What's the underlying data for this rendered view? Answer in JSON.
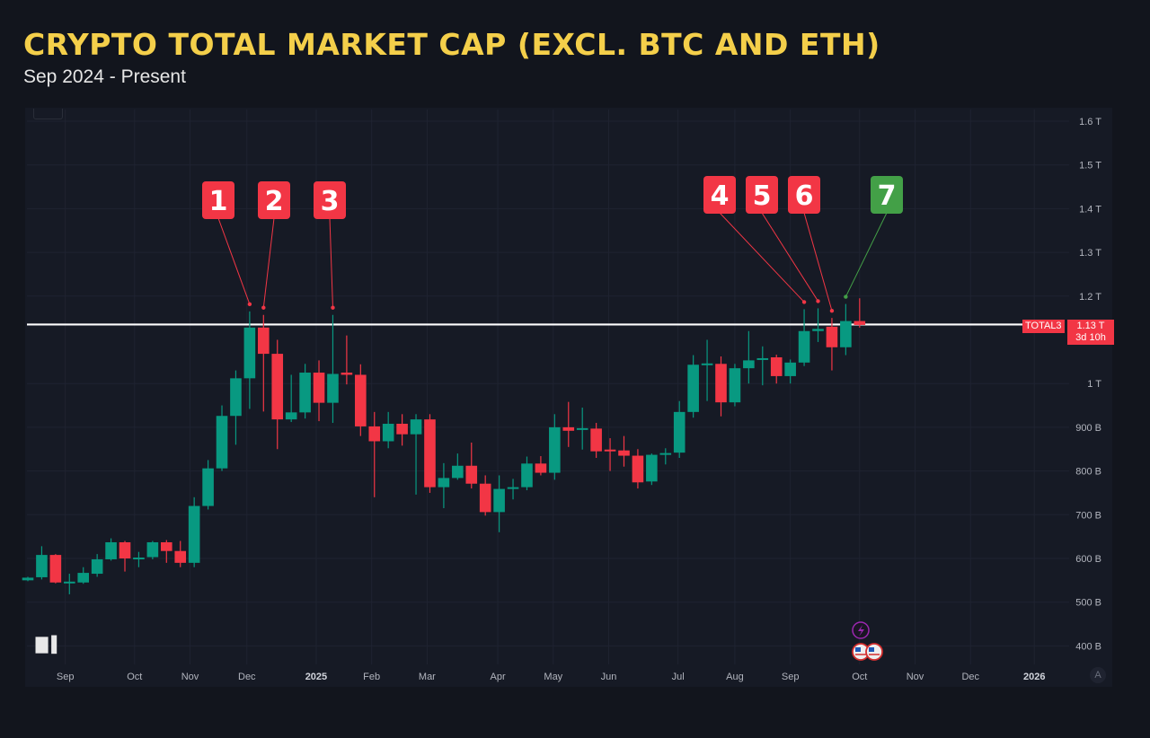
{
  "header": {
    "title": "CRYPTO TOTAL MARKET CAP (EXCL. BTC AND ETH)",
    "subtitle": "Sep 2024 - Present"
  },
  "colors": {
    "up": "#089981",
    "down": "#f23645",
    "title": "#f4cf4a",
    "marker_green": "#43a047",
    "level_line": "#ffffff"
  },
  "price_tag": {
    "symbol": "TOTAL3",
    "price": "1.13 T",
    "countdown": "3d 10h"
  },
  "auto_button": "A",
  "logo": "TV",
  "event_icons": [
    "lightning-icon",
    "us-flag-icon",
    "us-flag-icon"
  ],
  "chart_data": {
    "type": "candlestick",
    "title": "CRYPTO TOTAL MARKET CAP (EXCL. BTC AND ETH)",
    "interval": "weekly",
    "ylim": [
      400,
      1600
    ],
    "yunit": "B USD",
    "y_ticks": [
      {
        "v": 1600,
        "label": "1.6 T"
      },
      {
        "v": 1500,
        "label": "1.5 T"
      },
      {
        "v": 1400,
        "label": "1.4 T"
      },
      {
        "v": 1300,
        "label": "1.3 T"
      },
      {
        "v": 1200,
        "label": "1.2 T"
      },
      {
        "v": 1000,
        "label": "1 T"
      },
      {
        "v": 900,
        "label": "900 B"
      },
      {
        "v": 800,
        "label": "800 B"
      },
      {
        "v": 700,
        "label": "700 B"
      },
      {
        "v": 600,
        "label": "600 B"
      },
      {
        "v": 500,
        "label": "500 B"
      },
      {
        "v": 400,
        "label": "400 B"
      }
    ],
    "x_ticks": [
      {
        "week": 2.7,
        "label": "Sep",
        "bold": false
      },
      {
        "week": 7.7,
        "label": "Oct",
        "bold": false
      },
      {
        "week": 11.7,
        "label": "Nov",
        "bold": false
      },
      {
        "week": 15.8,
        "label": "Dec",
        "bold": false
      },
      {
        "week": 20.8,
        "label": "2025",
        "bold": true
      },
      {
        "week": 24.8,
        "label": "Feb",
        "bold": false
      },
      {
        "week": 28.8,
        "label": "Mar",
        "bold": false
      },
      {
        "week": 33.9,
        "label": "Apr",
        "bold": false
      },
      {
        "week": 37.9,
        "label": "May",
        "bold": false
      },
      {
        "week": 41.9,
        "label": "Jun",
        "bold": false
      },
      {
        "week": 46.9,
        "label": "Jul",
        "bold": false
      },
      {
        "week": 51,
        "label": "Aug",
        "bold": false
      },
      {
        "week": 55,
        "label": "Sep",
        "bold": false
      },
      {
        "week": 60,
        "label": "Oct",
        "bold": false
      },
      {
        "week": 64,
        "label": "Nov",
        "bold": false
      },
      {
        "week": 68,
        "label": "Dec",
        "bold": false
      },
      {
        "week": 72.6,
        "label": "2026",
        "bold": true
      }
    ],
    "resistance_level": 1135,
    "candles": [
      [
        550,
        558,
        548,
        556
      ],
      [
        557,
        628,
        552,
        608
      ],
      [
        608,
        610,
        543,
        545
      ],
      [
        545,
        565,
        518,
        547
      ],
      [
        545,
        580,
        542,
        567
      ],
      [
        565,
        610,
        558,
        598
      ],
      [
        598,
        646,
        595,
        637
      ],
      [
        637,
        640,
        570,
        600
      ],
      [
        600,
        615,
        580,
        602
      ],
      [
        603,
        640,
        598,
        637
      ],
      [
        637,
        642,
        590,
        617
      ],
      [
        617,
        640,
        580,
        590
      ],
      [
        590,
        740,
        580,
        720
      ],
      [
        720,
        825,
        712,
        806
      ],
      [
        806,
        950,
        800,
        926
      ],
      [
        926,
        1030,
        860,
        1012
      ],
      [
        1012,
        1165,
        942,
        1128
      ],
      [
        1128,
        1157,
        936,
        1068
      ],
      [
        1068,
        1100,
        850,
        918
      ],
      [
        918,
        1020,
        912,
        934
      ],
      [
        934,
        1045,
        920,
        1025
      ],
      [
        1025,
        1053,
        914,
        956
      ],
      [
        956,
        1157,
        910,
        1022
      ],
      [
        1025,
        1110,
        998,
        1020
      ],
      [
        1020,
        1044,
        880,
        902
      ],
      [
        902,
        935,
        740,
        868
      ],
      [
        868,
        935,
        852,
        908
      ],
      [
        908,
        930,
        858,
        884
      ],
      [
        884,
        930,
        746,
        918
      ],
      [
        918,
        930,
        750,
        763
      ],
      [
        763,
        818,
        715,
        784
      ],
      [
        784,
        840,
        780,
        812
      ],
      [
        812,
        865,
        760,
        771
      ],
      [
        771,
        790,
        698,
        706
      ],
      [
        706,
        790,
        660,
        759
      ],
      [
        759,
        782,
        735,
        763
      ],
      [
        763,
        833,
        756,
        817
      ],
      [
        817,
        834,
        790,
        796
      ],
      [
        796,
        930,
        780,
        900
      ],
      [
        900,
        958,
        855,
        892
      ],
      [
        895,
        945,
        849,
        898
      ],
      [
        897,
        910,
        830,
        845
      ],
      [
        849,
        875,
        800,
        847
      ],
      [
        847,
        880,
        810,
        835
      ],
      [
        835,
        850,
        760,
        774
      ],
      [
        776,
        840,
        768,
        837
      ],
      [
        837,
        852,
        815,
        841
      ],
      [
        842,
        960,
        830,
        935
      ],
      [
        935,
        1065,
        922,
        1043
      ],
      [
        1043,
        1100,
        960,
        1046
      ],
      [
        1045,
        1062,
        925,
        957
      ],
      [
        957,
        1045,
        948,
        1035
      ],
      [
        1035,
        1120,
        1000,
        1053
      ],
      [
        1055,
        1085,
        996,
        1058
      ],
      [
        1060,
        1066,
        1000,
        1017
      ],
      [
        1017,
        1055,
        1000,
        1048
      ],
      [
        1048,
        1170,
        1040,
        1120
      ],
      [
        1120,
        1172,
        1095,
        1125
      ],
      [
        1130,
        1150,
        1030,
        1083
      ],
      [
        1083,
        1182,
        1065,
        1143
      ],
      [
        1143,
        1195,
        1128,
        1134
      ]
    ],
    "markers": [
      {
        "label": "1",
        "candle": 16,
        "color": "red"
      },
      {
        "label": "2",
        "candle": 17,
        "color": "red"
      },
      {
        "label": "3",
        "candle": 22,
        "color": "red"
      },
      {
        "label": "4",
        "candle": 56,
        "color": "red"
      },
      {
        "label": "5",
        "candle": 57,
        "color": "red"
      },
      {
        "label": "6",
        "candle": 58,
        "color": "red"
      },
      {
        "label": "7",
        "candle": 59,
        "color": "green"
      }
    ]
  }
}
